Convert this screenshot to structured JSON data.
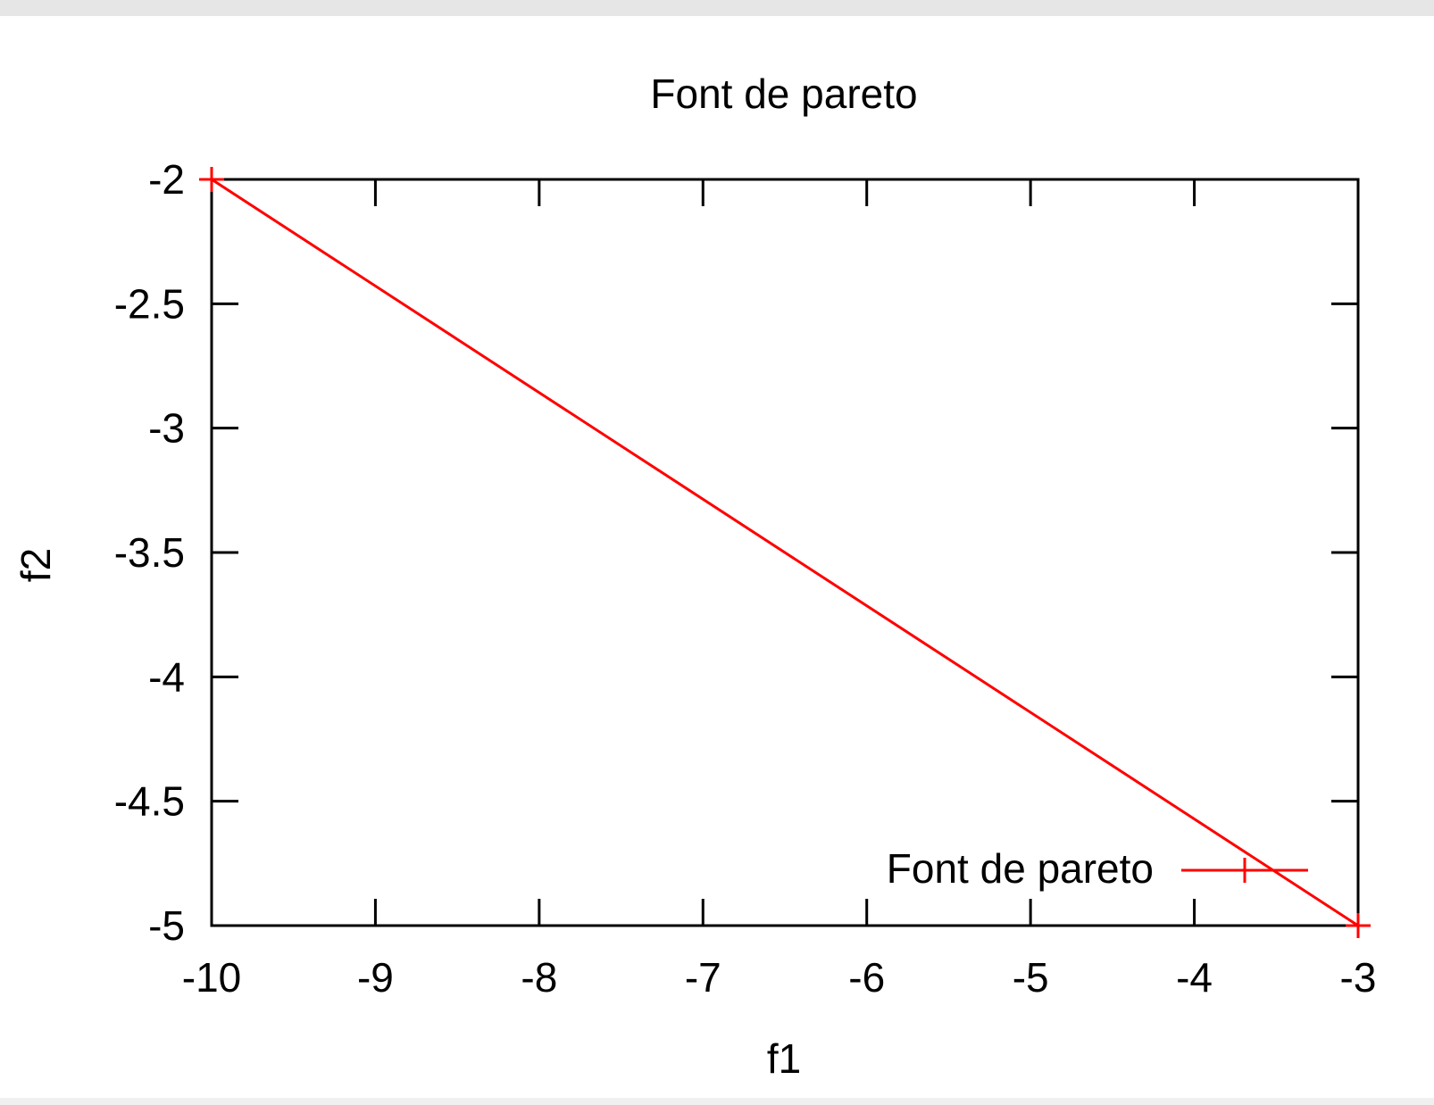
{
  "chart_data": {
    "type": "line",
    "title": "Font de pareto",
    "xlabel": "f1",
    "ylabel": "f2",
    "xlim": [
      -10,
      -3
    ],
    "ylim": [
      -5,
      -2
    ],
    "x_ticks": [
      "-10",
      "-9",
      "-8",
      "-7",
      "-6",
      "-5",
      "-4",
      "-3"
    ],
    "y_ticks": [
      "-2",
      "-2.5",
      "-3",
      "-3.5",
      "-4",
      "-4.5",
      "-5"
    ],
    "series": [
      {
        "name": "Font de pareto",
        "color": "#ff0000",
        "marker": "plus",
        "points": [
          {
            "x": -10,
            "y": -2
          },
          {
            "x": -3,
            "y": -5
          }
        ]
      }
    ],
    "legend": {
      "position": "bottom-right",
      "label": "Font de pareto"
    },
    "grid": false
  }
}
